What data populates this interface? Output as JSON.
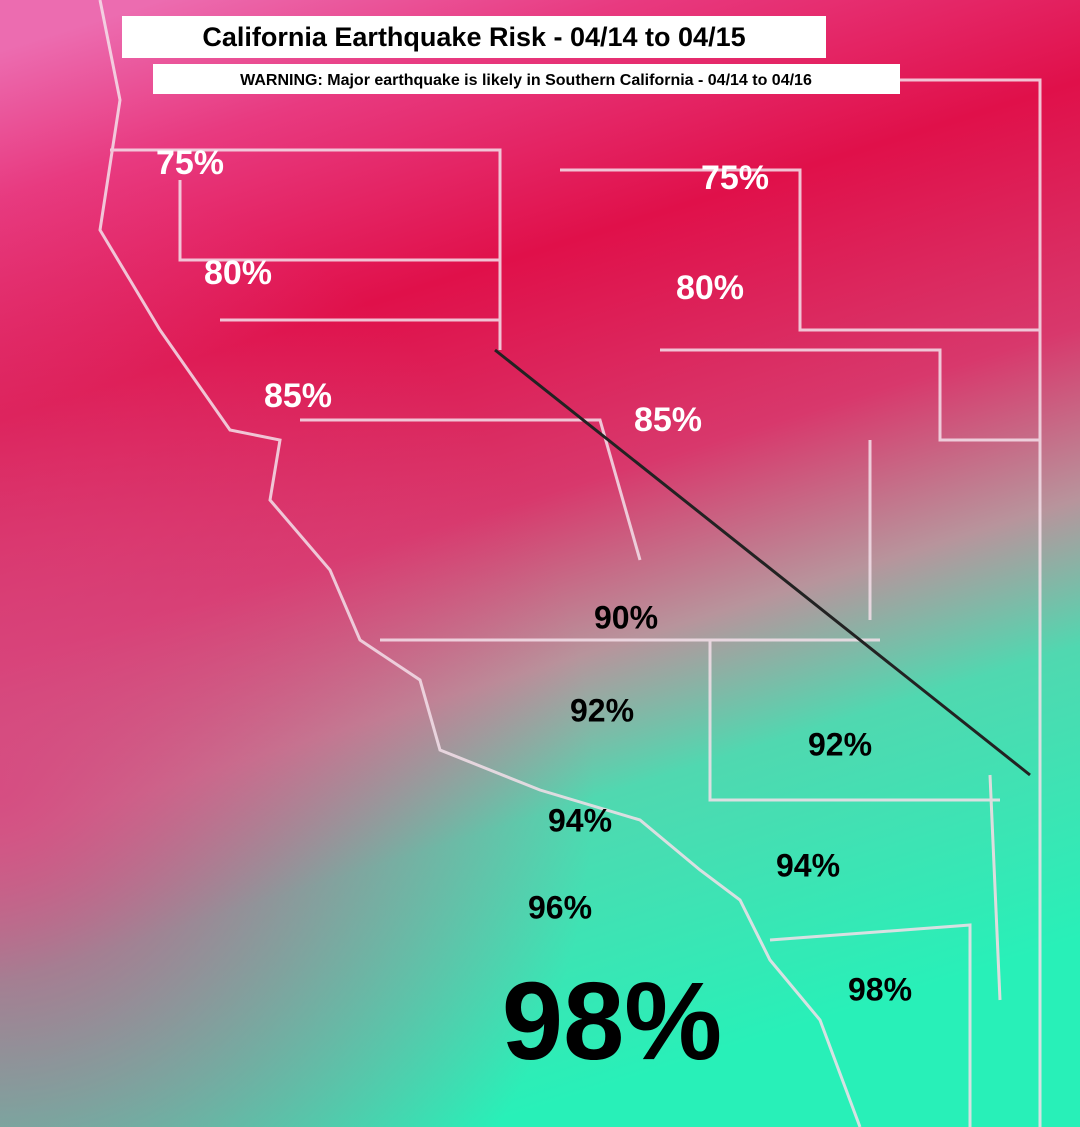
{
  "header": {
    "title": "California Earthquake Risk - 04/14 to 04/15",
    "warning": "WARNING: Major earthquake is likely in Southern California - 04/14 to 04/16"
  },
  "labels": [
    "75%",
    "75%",
    "80%",
    "80%",
    "85%",
    "85%",
    "90%",
    "92%",
    "92%",
    "94%",
    "94%",
    "96%",
    "98%",
    "98%"
  ]
}
